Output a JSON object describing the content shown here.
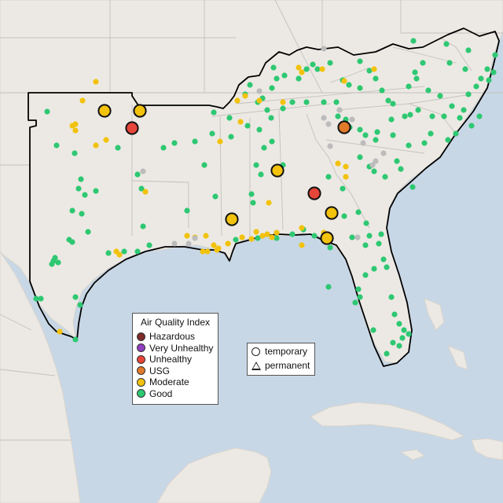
{
  "map": {
    "region": "Southeastern United States",
    "colors": {
      "water": "#c8d7e6",
      "land": "#ece9e4",
      "land_shadow": "#d8d4cd",
      "state_border": "#c4c0ba",
      "region_outline": "#000000"
    }
  },
  "legend": {
    "title": "Air Quality Index",
    "categories": [
      {
        "label": "Hazardous",
        "color": "#7e2b2b"
      },
      {
        "label": "Very Unhealthy",
        "color": "#8f3fbf"
      },
      {
        "label": "Unhealthy",
        "color": "#e6453a"
      },
      {
        "label": "USG",
        "color": "#e07a2a"
      },
      {
        "label": "Moderate",
        "color": "#f2c20c"
      },
      {
        "label": "Good",
        "color": "#2ec872"
      }
    ],
    "no_data_color": "#bcbcbc"
  },
  "type_legend": {
    "temporary": "temporary",
    "permanent": "permanent"
  }
}
